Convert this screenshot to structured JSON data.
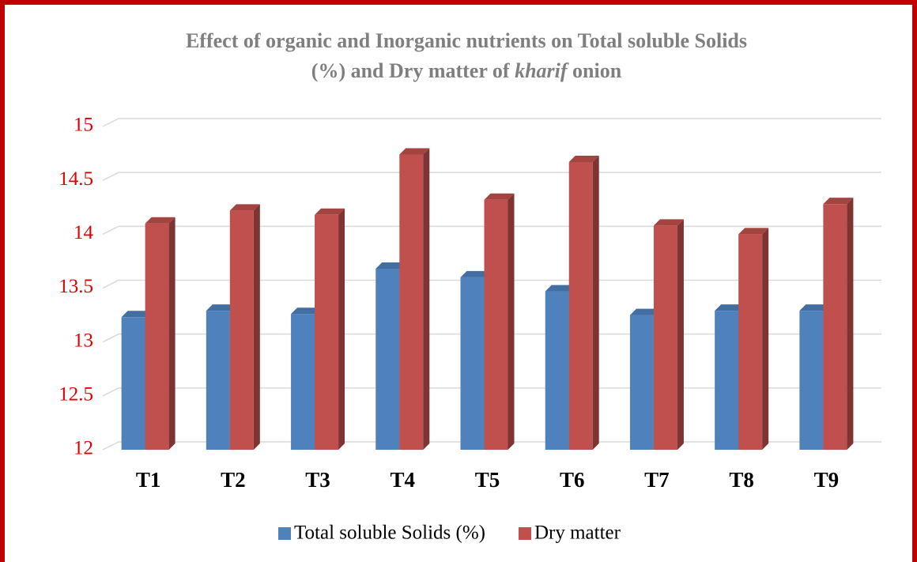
{
  "chart_data": {
    "type": "bar3d",
    "title_lines": [
      "Effect of organic and Inorganic nutrients on Total soluble Solids",
      "(%) and Dry matter of kharif onion"
    ],
    "title_italic": "kharif",
    "categories": [
      "T1",
      "T2",
      "T3",
      "T4",
      "T5",
      "T6",
      "T7",
      "T8",
      "T9"
    ],
    "series": [
      {
        "name": "Total soluble Solids (%)",
        "color": "#4f81bd",
        "values": [
          13.23,
          13.29,
          13.26,
          13.68,
          13.6,
          13.47,
          13.25,
          13.29,
          13.29
        ]
      },
      {
        "name": "Dry matter",
        "color": "#c0504d",
        "values": [
          14.1,
          14.22,
          14.18,
          14.74,
          14.32,
          14.67,
          14.08,
          14.0,
          14.28
        ]
      }
    ],
    "ylim": [
      12,
      15
    ],
    "yticks": [
      12,
      12.5,
      13,
      13.5,
      14,
      14.5,
      15
    ],
    "grid": true,
    "legend": "bottom"
  }
}
